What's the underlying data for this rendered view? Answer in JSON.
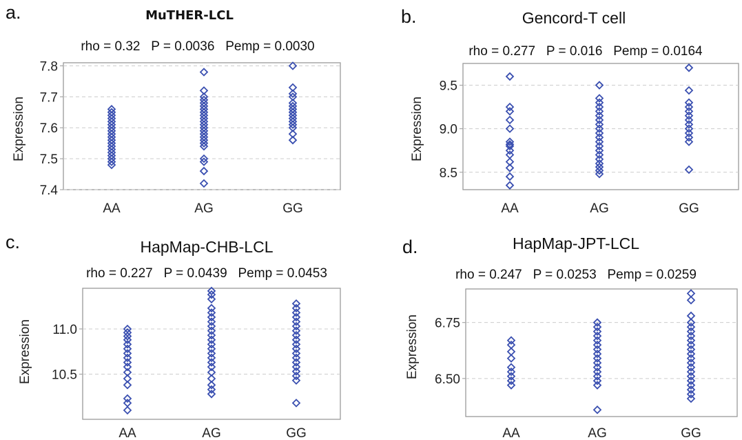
{
  "chart_data": [
    {
      "type": "scatter",
      "panel": "a.",
      "title": "MuTHER-LCL",
      "stats": "rho = 0.32   P = 0.0036   Pemp = 0.0030",
      "ylabel": "Expression",
      "categories": [
        "AA",
        "AG",
        "GG"
      ],
      "ylim": [
        7.4,
        7.81
      ],
      "yticks": [
        7.4,
        7.5,
        7.6,
        7.7,
        7.8
      ],
      "grid": true,
      "series": [
        {
          "category": "AA",
          "values": [
            7.48,
            7.49,
            7.5,
            7.51,
            7.52,
            7.53,
            7.54,
            7.55,
            7.56,
            7.57,
            7.58,
            7.59,
            7.6,
            7.61,
            7.62,
            7.63,
            7.64,
            7.65,
            7.66
          ]
        },
        {
          "category": "AG",
          "values": [
            7.42,
            7.46,
            7.49,
            7.5,
            7.54,
            7.55,
            7.56,
            7.57,
            7.58,
            7.59,
            7.6,
            7.61,
            7.62,
            7.63,
            7.64,
            7.65,
            7.66,
            7.67,
            7.68,
            7.69,
            7.7,
            7.72,
            7.78
          ]
        },
        {
          "category": "GG",
          "values": [
            7.56,
            7.58,
            7.6,
            7.61,
            7.62,
            7.63,
            7.64,
            7.65,
            7.66,
            7.67,
            7.68,
            7.7,
            7.71,
            7.73,
            7.8
          ]
        }
      ]
    },
    {
      "type": "scatter",
      "panel": "b.",
      "title": "Gencord-T cell",
      "stats": "rho = 0.277   P = 0.016   Pemp = 0.0164",
      "ylabel": "Expression",
      "categories": [
        "AA",
        "AG",
        "GG"
      ],
      "ylim": [
        8.3,
        9.75
      ],
      "yticks": [
        8.5,
        9.0,
        9.5
      ],
      "grid": true,
      "series": [
        {
          "category": "AA",
          "values": [
            8.35,
            8.45,
            8.55,
            8.62,
            8.7,
            8.75,
            8.8,
            8.82,
            8.85,
            9.0,
            9.1,
            9.2,
            9.25,
            9.6
          ]
        },
        {
          "category": "AG",
          "values": [
            8.48,
            8.52,
            8.56,
            8.6,
            8.65,
            8.7,
            8.75,
            8.8,
            8.85,
            8.9,
            8.95,
            9.0,
            9.05,
            9.1,
            9.15,
            9.2,
            9.25,
            9.3,
            9.35,
            9.5
          ]
        },
        {
          "category": "GG",
          "values": [
            8.53,
            8.85,
            8.9,
            8.95,
            9.0,
            9.05,
            9.1,
            9.15,
            9.2,
            9.25,
            9.3,
            9.44,
            9.7
          ]
        }
      ]
    },
    {
      "type": "scatter",
      "panel": "c.",
      "title": "HapMap-CHB-LCL",
      "stats": "rho = 0.227   P = 0.0439   Pemp = 0.0453",
      "ylabel": "Expression",
      "categories": [
        "AA",
        "AG",
        "GG"
      ],
      "ylim": [
        10.0,
        11.45
      ],
      "yticks": [
        10.5,
        11.0
      ],
      "grid": true,
      "series": [
        {
          "category": "AA",
          "values": [
            10.1,
            10.18,
            10.23,
            10.38,
            10.45,
            10.52,
            10.58,
            10.63,
            10.68,
            10.73,
            10.78,
            10.83,
            10.88,
            10.92,
            10.96,
            11.0
          ]
        },
        {
          "category": "AG",
          "values": [
            10.28,
            10.33,
            10.38,
            10.45,
            10.52,
            10.58,
            10.63,
            10.68,
            10.73,
            10.78,
            10.83,
            10.88,
            10.93,
            10.98,
            11.03,
            11.08,
            11.13,
            11.18,
            11.23,
            11.33,
            11.38,
            11.42
          ]
        },
        {
          "category": "GG",
          "values": [
            10.18,
            10.43,
            10.48,
            10.53,
            10.58,
            10.63,
            10.68,
            10.73,
            10.78,
            10.83,
            10.88,
            10.93,
            10.98,
            11.03,
            11.08,
            11.13,
            11.18,
            11.23,
            11.28
          ]
        }
      ]
    },
    {
      "type": "scatter",
      "panel": "d.",
      "title": "HapMap-JPT-LCL",
      "stats": "rho = 0.247   P = 0.0253   Pemp = 0.0259",
      "ylabel": "Expression",
      "categories": [
        "AA",
        "AG",
        "GG"
      ],
      "ylim": [
        6.33,
        6.9
      ],
      "yticks": [
        6.5,
        6.75
      ],
      "grid": true,
      "series": [
        {
          "category": "AA",
          "values": [
            6.47,
            6.49,
            6.51,
            6.53,
            6.55,
            6.59,
            6.62,
            6.65,
            6.67
          ]
        },
        {
          "category": "AG",
          "values": [
            6.36,
            6.47,
            6.49,
            6.51,
            6.53,
            6.55,
            6.57,
            6.59,
            6.61,
            6.63,
            6.65,
            6.67,
            6.69,
            6.71,
            6.73,
            6.75
          ]
        },
        {
          "category": "GG",
          "values": [
            6.41,
            6.43,
            6.45,
            6.47,
            6.49,
            6.51,
            6.53,
            6.55,
            6.57,
            6.59,
            6.61,
            6.63,
            6.65,
            6.67,
            6.69,
            6.71,
            6.73,
            6.75,
            6.78,
            6.85,
            6.88
          ]
        }
      ]
    }
  ]
}
